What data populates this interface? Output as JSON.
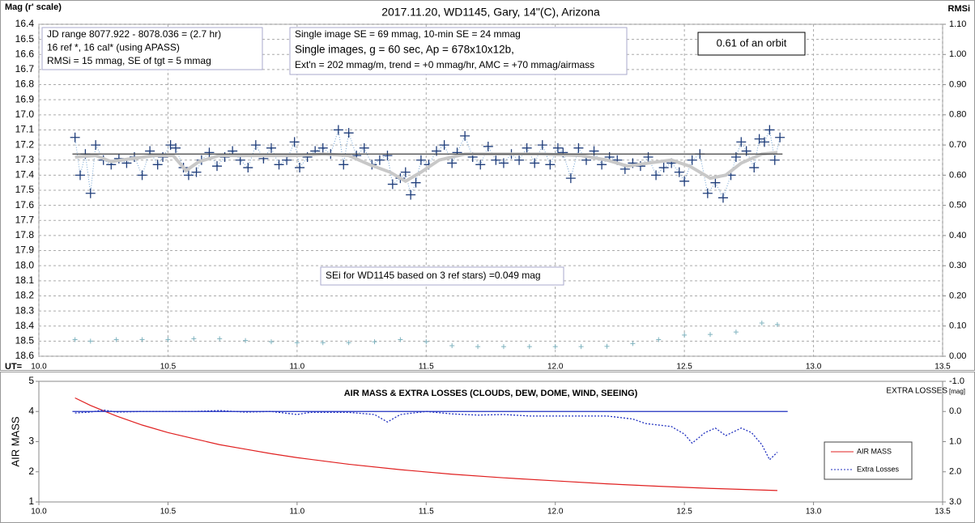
{
  "chart_data": [
    {
      "type": "line",
      "title": "2017.11.20,  WD1145, Gary, 14\"(C), Arizona",
      "ylabel": "Mag (r' scale)",
      "y2label": "RMSi",
      "xlabel": "UT=",
      "xlim": [
        10.0,
        13.5
      ],
      "xticks": [
        {
          "value": 10.0,
          "label": "10.0"
        },
        10.5,
        {
          "value": 11.0,
          "label": "11.0"
        },
        11.5,
        {
          "value": 12.0,
          "label": "12.0"
        },
        12.5,
        {
          "value": 13.0,
          "label": "13.0"
        },
        13.5
      ],
      "ylim": [
        16.4,
        18.6
      ],
      "y_inverted": true,
      "yticks": [
        16.4,
        16.5,
        16.6,
        16.7,
        16.8,
        16.9,
        {
          "value": 17.0,
          "label": "17.0"
        },
        17.1,
        17.2,
        17.3,
        17.4,
        17.5,
        17.6,
        17.7,
        17.8,
        17.9,
        {
          "value": 18.0,
          "label": "18.0"
        },
        18.1,
        18.2,
        18.3,
        18.4,
        18.5,
        18.6
      ],
      "y2lim": [
        0.0,
        1.1
      ],
      "y2ticks": [
        {
          "value": 1.1,
          "label": "1.10"
        },
        {
          "value": 1.0,
          "label": "1.00"
        },
        {
          "value": 0.9,
          "label": "0.90"
        },
        {
          "value": 0.8,
          "label": "0.80"
        },
        {
          "value": 0.7,
          "label": "0.70"
        },
        {
          "value": 0.6,
          "label": "0.60"
        },
        {
          "value": 0.5,
          "label": "0.50"
        },
        {
          "value": 0.4,
          "label": "0.40"
        },
        {
          "value": 0.3,
          "label": "0.30"
        },
        {
          "value": 0.2,
          "label": "0.20"
        },
        {
          "value": 0.1,
          "label": "0.10"
        },
        {
          "value": 0.0,
          "label": "0.00"
        }
      ],
      "grid": true,
      "series": [
        {
          "style": "cross-dotted",
          "color": "#1f3d7a",
          "x": [
            10.14,
            10.16,
            10.18,
            10.2,
            10.22,
            10.25,
            10.28,
            10.31,
            10.34,
            10.37,
            10.4,
            10.43,
            10.46,
            10.48,
            10.51,
            10.53,
            10.56,
            10.58,
            10.61,
            10.63,
            10.66,
            10.69,
            10.72,
            10.75,
            10.78,
            10.81,
            10.84,
            10.87,
            10.9,
            10.93,
            10.96,
            10.99,
            11.01,
            11.04,
            11.07,
            11.1,
            11.13,
            11.16,
            11.18,
            11.2,
            11.23,
            11.26,
            11.29,
            11.32,
            11.35,
            11.37,
            11.4,
            11.42,
            11.44,
            11.46,
            11.48,
            11.51,
            11.54,
            11.57,
            11.6,
            11.62,
            11.65,
            11.68,
            11.71,
            11.74,
            11.77,
            11.8,
            11.83,
            11.86,
            11.89,
            11.92,
            11.95,
            11.98,
            12.01,
            12.03,
            12.06,
            12.09,
            12.12,
            12.15,
            12.18,
            12.21,
            12.24,
            12.27,
            12.3,
            12.33,
            12.36,
            12.39,
            12.42,
            12.45,
            12.48,
            12.5,
            12.53,
            12.56,
            12.59,
            12.62,
            12.65,
            12.68,
            12.7,
            12.72,
            12.74,
            12.77,
            12.79,
            12.81,
            12.83,
            12.85,
            12.87
          ],
          "values": [
            17.15,
            17.4,
            17.26,
            17.52,
            17.2,
            17.3,
            17.33,
            17.29,
            17.32,
            17.28,
            17.4,
            17.24,
            17.33,
            17.28,
            17.2,
            17.22,
            17.35,
            17.4,
            17.38,
            17.3,
            17.25,
            17.34,
            17.28,
            17.24,
            17.3,
            17.35,
            17.2,
            17.29,
            17.22,
            17.33,
            17.3,
            17.18,
            17.35,
            17.28,
            17.24,
            17.22,
            17.26,
            17.1,
            17.33,
            17.12,
            17.27,
            17.22,
            17.33,
            17.3,
            17.27,
            17.46,
            17.42,
            17.38,
            17.53,
            17.45,
            17.3,
            17.33,
            17.24,
            17.2,
            17.32,
            17.25,
            17.14,
            17.28,
            17.33,
            17.21,
            17.3,
            17.32,
            17.26,
            17.3,
            17.22,
            17.32,
            17.2,
            17.33,
            17.22,
            17.25,
            17.42,
            17.22,
            17.3,
            17.24,
            17.33,
            17.28,
            17.3,
            17.36,
            17.32,
            17.34,
            17.28,
            17.4,
            17.35,
            17.32,
            17.38,
            17.44,
            17.3,
            17.26,
            17.52,
            17.45,
            17.55,
            17.4,
            17.28,
            17.18,
            17.24,
            17.35,
            17.16,
            17.18,
            17.1,
            17.3,
            17.15
          ]
        },
        {
          "style": "thick",
          "color": "#c8c8c8",
          "x": [
            10.14,
            10.22,
            10.28,
            10.36,
            10.45,
            10.52,
            10.57,
            10.62,
            10.7,
            10.85,
            11.0,
            11.1,
            11.2,
            11.28,
            11.36,
            11.42,
            11.48,
            11.55,
            11.65,
            11.8,
            11.95,
            12.1,
            12.2,
            12.28,
            12.36,
            12.45,
            12.52,
            12.6,
            12.66,
            12.72,
            12.8,
            12.86
          ],
          "values": [
            17.28,
            17.27,
            17.31,
            17.29,
            17.27,
            17.27,
            17.37,
            17.31,
            17.27,
            17.27,
            17.27,
            17.26,
            17.27,
            17.33,
            17.38,
            17.44,
            17.38,
            17.3,
            17.26,
            17.26,
            17.26,
            17.27,
            17.3,
            17.34,
            17.32,
            17.3,
            17.34,
            17.42,
            17.4,
            17.32,
            17.26,
            17.25
          ]
        },
        {
          "style": "line",
          "color": "#404040",
          "x": [
            10.13,
            12.88
          ],
          "values": [
            17.26,
            17.26
          ]
        },
        {
          "style": "cross",
          "color": "#7fb3bf",
          "axis": "y2",
          "x": [
            10.14,
            10.2,
            10.3,
            10.4,
            10.5,
            10.6,
            10.7,
            10.8,
            10.9,
            11.0,
            11.1,
            11.2,
            11.3,
            11.4,
            11.5,
            11.6,
            11.7,
            11.8,
            11.9,
            12.0,
            12.1,
            12.2,
            12.3,
            12.4,
            12.5,
            12.6,
            12.7,
            12.8,
            12.86
          ],
          "values": [
            0.055,
            0.05,
            0.055,
            0.055,
            0.055,
            0.058,
            0.058,
            0.052,
            0.048,
            0.045,
            0.045,
            0.045,
            0.048,
            0.055,
            0.048,
            0.035,
            0.032,
            0.032,
            0.032,
            0.032,
            0.032,
            0.033,
            0.042,
            0.055,
            0.07,
            0.072,
            0.08,
            0.11,
            0.105
          ]
        }
      ],
      "annotations": [
        {
          "lines": [
            "JD range  8077.922 - 8078.036 = (2.7 hr)",
            "16 ref *, 16 cal* (using APASS)",
            "RMSi = 15 mmag, SE of tgt = 5 mmag"
          ]
        },
        {
          "lines": [
            "Single image SE = 69 mmag, 10-min SE = 24 mmag",
            "Single images, g = 60 sec, Ap = 678x10x12b,",
            "Ext'n = 202 mmag/m, trend = +0 mmag/hr, AMC = +70 mmag/airmass"
          ]
        },
        {
          "lines": [
            "0.61 of an orbit"
          ]
        },
        {
          "lines": [
            "SEi for WD1145 based on 3 ref stars) =0.049 mag"
          ]
        }
      ]
    },
    {
      "type": "line",
      "title": "AIR MASS & EXTRA LOSSES (CLOUDS, DEW, DOME, WIND, SEEING)",
      "ylabel": "AIR MASS",
      "y2label": "EXTRA LOSSES",
      "y2unit": "[mag]",
      "xlim": [
        10.0,
        13.5
      ],
      "xticks": [
        {
          "value": 10.0,
          "label": "10.0"
        },
        10.5,
        {
          "value": 11.0,
          "label": "11.0"
        },
        11.5,
        {
          "value": 12.0,
          "label": "12.0"
        },
        12.5,
        {
          "value": 13.0,
          "label": "13.0"
        },
        13.5
      ],
      "ylim": [
        1,
        5
      ],
      "yticks": [
        1,
        2,
        3,
        4,
        5
      ],
      "y2lim": [
        -1.0,
        3.0
      ],
      "y2_inverted": true,
      "y2ticks": [
        {
          "value": -1.0,
          "label": "-1.0"
        },
        {
          "value": 0.0,
          "label": "0.0"
        },
        {
          "value": 1.0,
          "label": "1.0"
        },
        {
          "value": 2.0,
          "label": "2.0"
        },
        {
          "value": 3.0,
          "label": "3.0"
        }
      ],
      "legend": "right",
      "series": [
        {
          "name": "AIR MASS",
          "style": "line",
          "color": "#e02020",
          "x": [
            10.14,
            10.2,
            10.3,
            10.4,
            10.5,
            10.6,
            10.7,
            10.8,
            10.9,
            11.0,
            11.2,
            11.4,
            11.6,
            11.8,
            12.0,
            12.2,
            12.4,
            12.6,
            12.86
          ],
          "values": [
            4.45,
            4.2,
            3.85,
            3.55,
            3.3,
            3.1,
            2.9,
            2.75,
            2.6,
            2.47,
            2.25,
            2.07,
            1.92,
            1.8,
            1.7,
            1.6,
            1.52,
            1.45,
            1.38
          ]
        },
        {
          "name": "Extra Losses",
          "style": "dotted",
          "color": "#1f2fbf",
          "axis": "y2",
          "x": [
            10.14,
            10.2,
            10.25,
            10.3,
            10.4,
            10.5,
            10.6,
            10.7,
            10.8,
            10.9,
            11.0,
            11.05,
            11.2,
            11.3,
            11.35,
            11.4,
            11.5,
            11.6,
            11.7,
            11.8,
            11.9,
            12.0,
            12.1,
            12.2,
            12.3,
            12.35,
            12.45,
            12.5,
            12.53,
            12.58,
            12.62,
            12.66,
            12.72,
            12.76,
            12.8,
            12.83,
            12.86
          ],
          "values": [
            0.05,
            0.02,
            -0.05,
            0.02,
            0.0,
            0.0,
            0.0,
            -0.03,
            0.02,
            0.0,
            0.1,
            0.03,
            0.03,
            0.1,
            0.35,
            0.1,
            0.0,
            0.08,
            0.12,
            0.1,
            0.15,
            0.15,
            0.15,
            0.15,
            0.25,
            0.4,
            0.5,
            0.75,
            1.05,
            0.7,
            0.55,
            0.8,
            0.55,
            0.7,
            1.1,
            1.6,
            1.35
          ]
        },
        {
          "style": "line",
          "color": "#1f2fbf",
          "axis": "y2",
          "x": [
            10.13,
            12.9
          ],
          "values": [
            0.0,
            0.0
          ]
        }
      ]
    }
  ]
}
